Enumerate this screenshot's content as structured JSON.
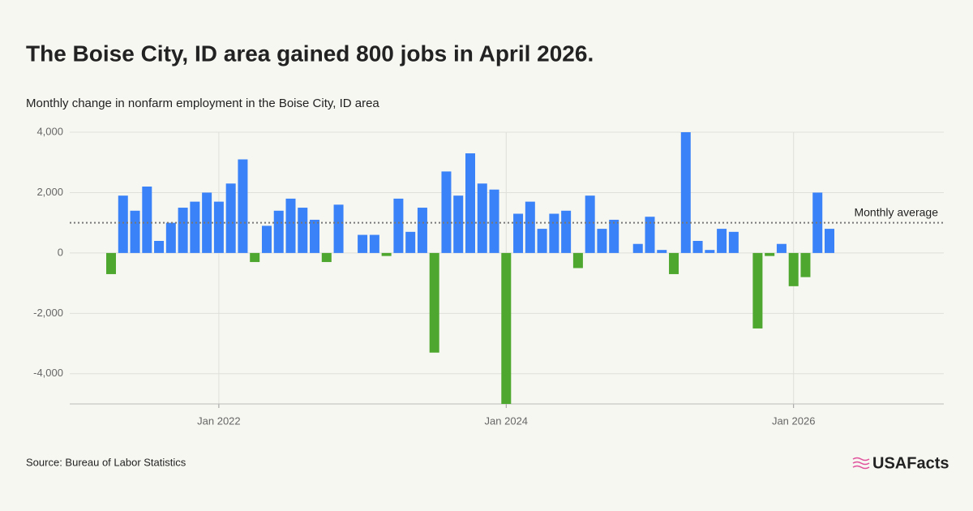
{
  "chart_data": {
    "type": "bar",
    "title": "The Boise City, ID area gained 800 jobs in April 2026.",
    "subtitle": "Monthly change in nonfarm employment in the Boise City, ID area",
    "source": "Source: Bureau of Labor Statistics",
    "brand": "USAFacts",
    "categories": [
      null,
      null,
      null,
      null,
      null,
      null,
      null,
      null,
      null,
      "Jan 2022",
      null,
      null,
      null,
      null,
      null,
      null,
      null,
      null,
      null,
      null,
      null,
      null,
      null,
      null,
      null,
      null,
      null,
      null,
      null,
      null,
      null,
      null,
      null,
      "Jan 2024",
      null,
      null,
      null,
      null,
      null,
      null,
      null,
      null,
      null,
      null,
      null,
      null,
      null,
      null,
      null,
      null,
      null,
      null,
      null,
      null,
      null,
      null,
      null,
      "Jan 2026",
      null,
      null,
      null
    ],
    "values": [
      -700,
      1900,
      1400,
      2200,
      400,
      1000,
      1500,
      1700,
      2000,
      1700,
      2300,
      3100,
      -300,
      900,
      1400,
      1800,
      1500,
      1100,
      -300,
      1600,
      null,
      600,
      600,
      -100,
      1800,
      700,
      1500,
      -3300,
      2700,
      1900,
      3300,
      2300,
      2100,
      -5000,
      1300,
      1700,
      800,
      1300,
      1400,
      -500,
      1900,
      800,
      1100,
      null,
      300,
      1200,
      100,
      -700,
      4000,
      400,
      100,
      800,
      700,
      null,
      -2500,
      -100,
      300,
      -1100,
      -800,
      2000,
      800
    ],
    "positive_color": "#3a82f7",
    "negative_color": "#4ea72e",
    "average": 1000,
    "average_label": "Monthly average",
    "ylim": [
      -5000,
      4000
    ],
    "yticks": [
      {
        "value": -4000,
        "label": "-4,000"
      },
      {
        "value": -2000,
        "label": "-2,000"
      },
      0,
      {
        "value": 2000,
        "label": "2,000"
      },
      {
        "value": 4000,
        "label": "4,000"
      }
    ],
    "grid": true
  }
}
